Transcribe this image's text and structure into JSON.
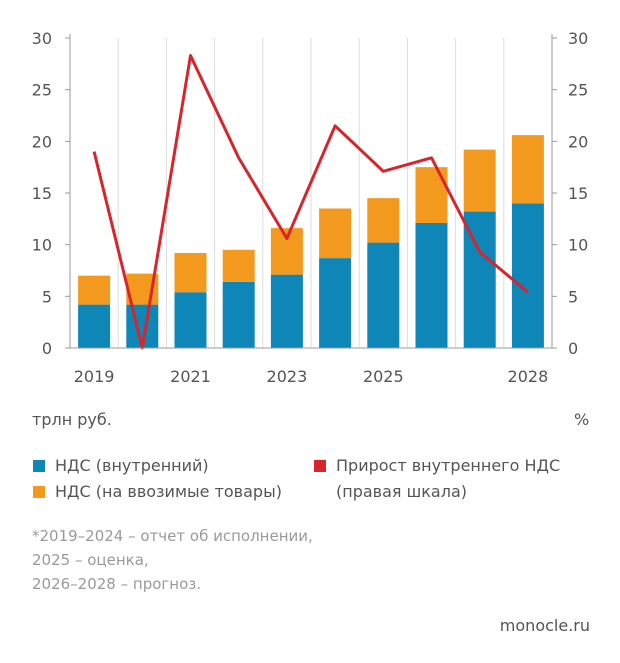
{
  "colors": {
    "domestic": "#0f86b8",
    "import": "#f39a1e",
    "growth": "#d8242a",
    "axis": "#999999",
    "grid": "#dddddd"
  },
  "chart_data": {
    "type": "bar",
    "title": "",
    "categories": [
      "2019",
      "2020",
      "2021",
      "2022",
      "2023",
      "2024",
      "2025",
      "2026",
      "2027",
      "2028"
    ],
    "x_tick_labels": [
      "2019",
      "",
      "2021",
      "",
      "2023",
      "",
      "2025",
      "",
      "",
      "2028"
    ],
    "left_axis": {
      "ylim": [
        0,
        30
      ],
      "ticks": [
        "0",
        "5",
        "10",
        "15",
        "20",
        "25",
        "30"
      ],
      "unit_label": "трлн руб."
    },
    "right_axis": {
      "ylim": [
        0,
        30
      ],
      "ticks": [
        "0",
        "5",
        "10",
        "15",
        "20",
        "25",
        "30"
      ],
      "unit_label": "%"
    },
    "grid": true,
    "stacked": true,
    "series": [
      {
        "name": "НДС (внутренний)",
        "type": "bar",
        "axis": "left",
        "values": [
          4.2,
          4.2,
          5.4,
          6.4,
          7.1,
          8.7,
          10.2,
          12.1,
          13.2,
          14.0
        ]
      },
      {
        "name": "НДС (на ввозимые товары)",
        "type": "bar",
        "axis": "left",
        "values": [
          2.8,
          3.0,
          3.8,
          3.1,
          4.5,
          4.8,
          4.3,
          5.4,
          6.0,
          6.6
        ]
      },
      {
        "name": "Прирост внутреннего НДС (правая шкала)",
        "type": "line",
        "axis": "right",
        "values": [
          19.0,
          0.0,
          28.3,
          18.4,
          10.6,
          21.5,
          17.1,
          18.4,
          9.3,
          5.4
        ]
      }
    ]
  },
  "legend": [
    {
      "label": "НДС (внутренний)",
      "color": "#0f86b8"
    },
    {
      "label": "НДС (на ввозимые товары)",
      "color": "#f39a1e"
    },
    {
      "label": "Прирост внутреннего НДС",
      "label2": "(правая шкала)",
      "color": "#d8242a"
    }
  ],
  "notes": [
    "*2019–2024 – отчет об исполнении,",
    "2025 – оценка,",
    "2026–2028 – прогноз."
  ],
  "source": "monocle.ru"
}
